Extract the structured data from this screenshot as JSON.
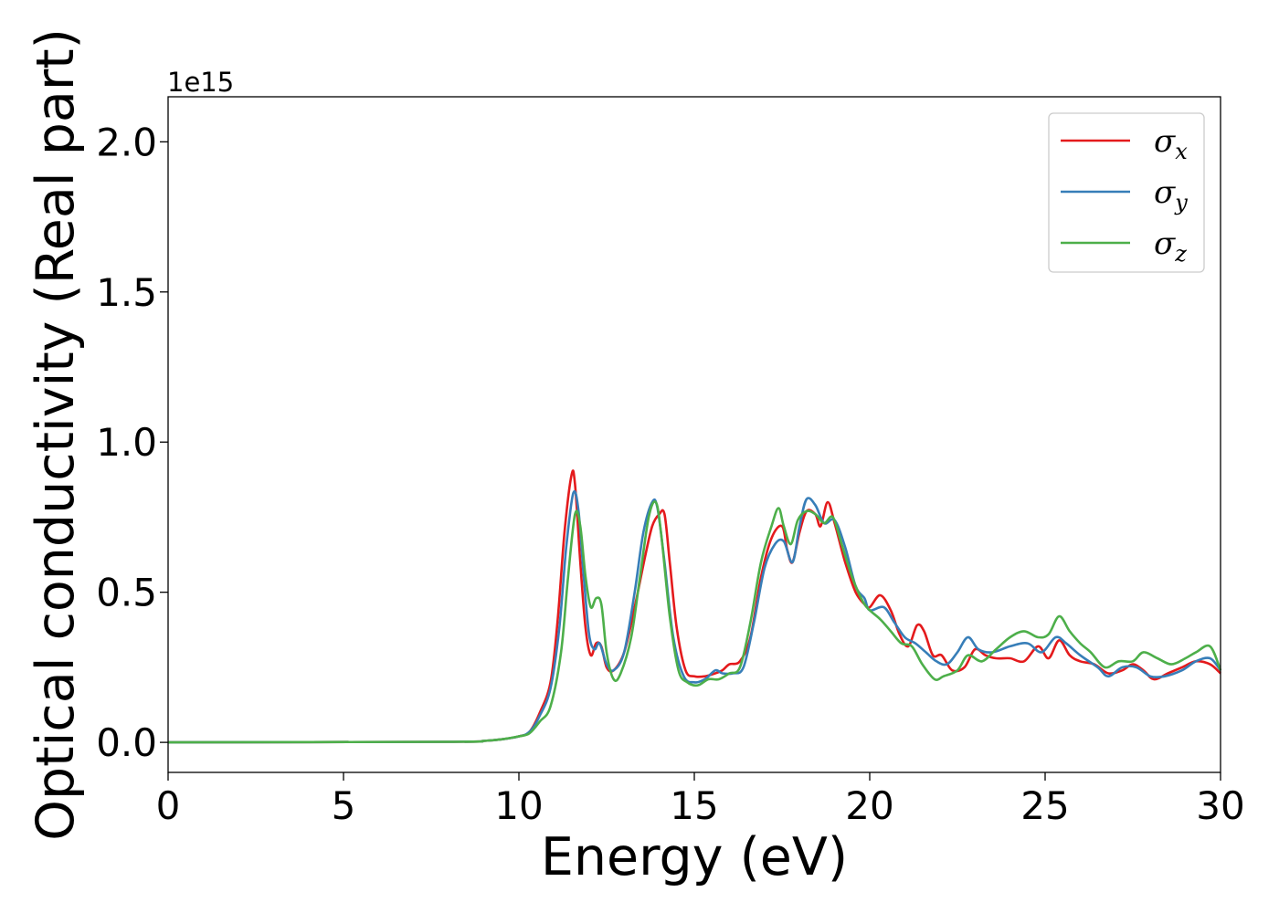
{
  "chart_data": {
    "type": "line",
    "xlabel": "Energy (eV)",
    "ylabel": "Optical conductivity (Real part)",
    "y_offset_label": "1e15",
    "xlim": [
      0,
      30
    ],
    "ylim": [
      -0.1,
      2.15
    ],
    "x_ticks": [
      0,
      5,
      10,
      15,
      20,
      25,
      30
    ],
    "y_ticks": [
      0.0,
      0.5,
      1.0,
      1.5,
      2.0
    ],
    "x_tick_labels": [
      "0",
      "5",
      "10",
      "15",
      "20",
      "25",
      "30"
    ],
    "y_tick_labels": [
      "0.0",
      "0.5",
      "1.0",
      "1.5",
      "2.0"
    ],
    "grid": false,
    "legend_position": "top-right",
    "series": [
      {
        "name": "σx",
        "symbol": "σ",
        "subscript": "x",
        "color": "#e41a1c",
        "points": [
          [
            0,
            0
          ],
          [
            8,
            0.002
          ],
          [
            9,
            0.005
          ],
          [
            9.5,
            0.01
          ],
          [
            10,
            0.02
          ],
          [
            10.3,
            0.035
          ],
          [
            10.6,
            0.1
          ],
          [
            10.9,
            0.2
          ],
          [
            11.1,
            0.4
          ],
          [
            11.3,
            0.7
          ],
          [
            11.5,
            0.89
          ],
          [
            11.6,
            0.86
          ],
          [
            11.75,
            0.6
          ],
          [
            11.9,
            0.38
          ],
          [
            12.05,
            0.29
          ],
          [
            12.2,
            0.33
          ],
          [
            12.35,
            0.32
          ],
          [
            12.5,
            0.25
          ],
          [
            12.7,
            0.24
          ],
          [
            13.0,
            0.3
          ],
          [
            13.3,
            0.45
          ],
          [
            13.6,
            0.62
          ],
          [
            13.8,
            0.72
          ],
          [
            14.0,
            0.76
          ],
          [
            14.15,
            0.76
          ],
          [
            14.3,
            0.6
          ],
          [
            14.5,
            0.38
          ],
          [
            14.75,
            0.24
          ],
          [
            15.0,
            0.22
          ],
          [
            15.3,
            0.22
          ],
          [
            15.6,
            0.23
          ],
          [
            15.8,
            0.24
          ],
          [
            16.0,
            0.26
          ],
          [
            16.3,
            0.27
          ],
          [
            16.6,
            0.35
          ],
          [
            16.9,
            0.55
          ],
          [
            17.2,
            0.68
          ],
          [
            17.5,
            0.72
          ],
          [
            17.65,
            0.64
          ],
          [
            17.8,
            0.6
          ],
          [
            18.0,
            0.7
          ],
          [
            18.2,
            0.77
          ],
          [
            18.45,
            0.76
          ],
          [
            18.6,
            0.72
          ],
          [
            18.8,
            0.8
          ],
          [
            19.0,
            0.73
          ],
          [
            19.3,
            0.6
          ],
          [
            19.6,
            0.5
          ],
          [
            19.85,
            0.46
          ],
          [
            20.0,
            0.45
          ],
          [
            20.3,
            0.49
          ],
          [
            20.6,
            0.44
          ],
          [
            20.85,
            0.36
          ],
          [
            21.1,
            0.32
          ],
          [
            21.35,
            0.39
          ],
          [
            21.55,
            0.37
          ],
          [
            21.8,
            0.29
          ],
          [
            22.05,
            0.29
          ],
          [
            22.35,
            0.24
          ],
          [
            22.7,
            0.25
          ],
          [
            23.0,
            0.31
          ],
          [
            23.3,
            0.29
          ],
          [
            23.6,
            0.28
          ],
          [
            24.0,
            0.28
          ],
          [
            24.4,
            0.27
          ],
          [
            24.8,
            0.32
          ],
          [
            25.1,
            0.28
          ],
          [
            25.4,
            0.34
          ],
          [
            25.7,
            0.29
          ],
          [
            26.0,
            0.27
          ],
          [
            26.4,
            0.26
          ],
          [
            26.8,
            0.23
          ],
          [
            27.2,
            0.24
          ],
          [
            27.5,
            0.26
          ],
          [
            27.8,
            0.24
          ],
          [
            28.1,
            0.21
          ],
          [
            28.5,
            0.23
          ],
          [
            28.9,
            0.25
          ],
          [
            29.3,
            0.27
          ],
          [
            29.7,
            0.26
          ],
          [
            30.0,
            0.23
          ]
        ]
      },
      {
        "name": "σy",
        "symbol": "σ",
        "subscript": "y",
        "color": "#377eb8",
        "points": [
          [
            0,
            0
          ],
          [
            8,
            0.002
          ],
          [
            9,
            0.005
          ],
          [
            9.5,
            0.01
          ],
          [
            10,
            0.02
          ],
          [
            10.3,
            0.035
          ],
          [
            10.6,
            0.09
          ],
          [
            10.9,
            0.18
          ],
          [
            11.15,
            0.38
          ],
          [
            11.35,
            0.65
          ],
          [
            11.55,
            0.83
          ],
          [
            11.7,
            0.77
          ],
          [
            11.85,
            0.55
          ],
          [
            12.0,
            0.36
          ],
          [
            12.15,
            0.31
          ],
          [
            12.3,
            0.33
          ],
          [
            12.5,
            0.26
          ],
          [
            12.7,
            0.24
          ],
          [
            13.0,
            0.3
          ],
          [
            13.3,
            0.5
          ],
          [
            13.55,
            0.7
          ],
          [
            13.8,
            0.8
          ],
          [
            13.95,
            0.78
          ],
          [
            14.15,
            0.6
          ],
          [
            14.4,
            0.35
          ],
          [
            14.7,
            0.22
          ],
          [
            15.0,
            0.2
          ],
          [
            15.3,
            0.21
          ],
          [
            15.6,
            0.24
          ],
          [
            15.8,
            0.23
          ],
          [
            16.1,
            0.23
          ],
          [
            16.4,
            0.25
          ],
          [
            16.7,
            0.4
          ],
          [
            17.0,
            0.58
          ],
          [
            17.3,
            0.66
          ],
          [
            17.55,
            0.67
          ],
          [
            17.8,
            0.6
          ],
          [
            18.0,
            0.72
          ],
          [
            18.2,
            0.81
          ],
          [
            18.45,
            0.79
          ],
          [
            18.7,
            0.73
          ],
          [
            19.0,
            0.74
          ],
          [
            19.3,
            0.65
          ],
          [
            19.6,
            0.52
          ],
          [
            19.85,
            0.48
          ],
          [
            20.0,
            0.44
          ],
          [
            20.4,
            0.45
          ],
          [
            20.7,
            0.4
          ],
          [
            21.0,
            0.35
          ],
          [
            21.3,
            0.33
          ],
          [
            21.6,
            0.3
          ],
          [
            21.9,
            0.27
          ],
          [
            22.2,
            0.26
          ],
          [
            22.5,
            0.3
          ],
          [
            22.8,
            0.35
          ],
          [
            23.1,
            0.31
          ],
          [
            23.5,
            0.3
          ],
          [
            24.0,
            0.32
          ],
          [
            24.5,
            0.33
          ],
          [
            24.9,
            0.3
          ],
          [
            25.3,
            0.35
          ],
          [
            25.6,
            0.33
          ],
          [
            26.0,
            0.29
          ],
          [
            26.5,
            0.25
          ],
          [
            26.8,
            0.22
          ],
          [
            27.2,
            0.25
          ],
          [
            27.6,
            0.25
          ],
          [
            28.0,
            0.22
          ],
          [
            28.4,
            0.22
          ],
          [
            28.9,
            0.24
          ],
          [
            29.3,
            0.27
          ],
          [
            29.7,
            0.28
          ],
          [
            30.0,
            0.24
          ]
        ]
      },
      {
        "name": "σz",
        "symbol": "σ",
        "subscript": "z",
        "color": "#4daf4a",
        "points": [
          [
            0,
            0
          ],
          [
            8,
            0.002
          ],
          [
            9,
            0.005
          ],
          [
            9.5,
            0.01
          ],
          [
            10,
            0.02
          ],
          [
            10.3,
            0.03
          ],
          [
            10.6,
            0.07
          ],
          [
            10.9,
            0.12
          ],
          [
            11.2,
            0.3
          ],
          [
            11.4,
            0.55
          ],
          [
            11.6,
            0.76
          ],
          [
            11.75,
            0.72
          ],
          [
            11.9,
            0.55
          ],
          [
            12.05,
            0.45
          ],
          [
            12.2,
            0.48
          ],
          [
            12.35,
            0.46
          ],
          [
            12.5,
            0.3
          ],
          [
            12.7,
            0.21
          ],
          [
            12.9,
            0.23
          ],
          [
            13.2,
            0.35
          ],
          [
            13.45,
            0.55
          ],
          [
            13.7,
            0.75
          ],
          [
            13.9,
            0.8
          ],
          [
            14.05,
            0.7
          ],
          [
            14.3,
            0.42
          ],
          [
            14.55,
            0.24
          ],
          [
            14.8,
            0.2
          ],
          [
            15.1,
            0.19
          ],
          [
            15.4,
            0.21
          ],
          [
            15.7,
            0.21
          ],
          [
            16.0,
            0.23
          ],
          [
            16.3,
            0.25
          ],
          [
            16.6,
            0.4
          ],
          [
            16.9,
            0.6
          ],
          [
            17.2,
            0.72
          ],
          [
            17.4,
            0.78
          ],
          [
            17.55,
            0.72
          ],
          [
            17.75,
            0.66
          ],
          [
            17.95,
            0.74
          ],
          [
            18.2,
            0.77
          ],
          [
            18.45,
            0.76
          ],
          [
            18.7,
            0.73
          ],
          [
            18.95,
            0.75
          ],
          [
            19.2,
            0.66
          ],
          [
            19.5,
            0.55
          ],
          [
            19.8,
            0.47
          ],
          [
            20.0,
            0.44
          ],
          [
            20.3,
            0.41
          ],
          [
            20.6,
            0.37
          ],
          [
            20.9,
            0.33
          ],
          [
            21.2,
            0.32
          ],
          [
            21.5,
            0.26
          ],
          [
            21.85,
            0.21
          ],
          [
            22.1,
            0.22
          ],
          [
            22.5,
            0.24
          ],
          [
            22.8,
            0.29
          ],
          [
            23.2,
            0.27
          ],
          [
            23.6,
            0.31
          ],
          [
            24.0,
            0.35
          ],
          [
            24.4,
            0.37
          ],
          [
            24.8,
            0.35
          ],
          [
            25.1,
            0.36
          ],
          [
            25.4,
            0.42
          ],
          [
            25.7,
            0.37
          ],
          [
            26.0,
            0.33
          ],
          [
            26.3,
            0.3
          ],
          [
            26.7,
            0.25
          ],
          [
            27.1,
            0.27
          ],
          [
            27.5,
            0.27
          ],
          [
            27.8,
            0.3
          ],
          [
            28.2,
            0.28
          ],
          [
            28.6,
            0.26
          ],
          [
            29.0,
            0.28
          ],
          [
            29.3,
            0.3
          ],
          [
            29.7,
            0.32
          ],
          [
            30.0,
            0.24
          ]
        ]
      }
    ]
  }
}
